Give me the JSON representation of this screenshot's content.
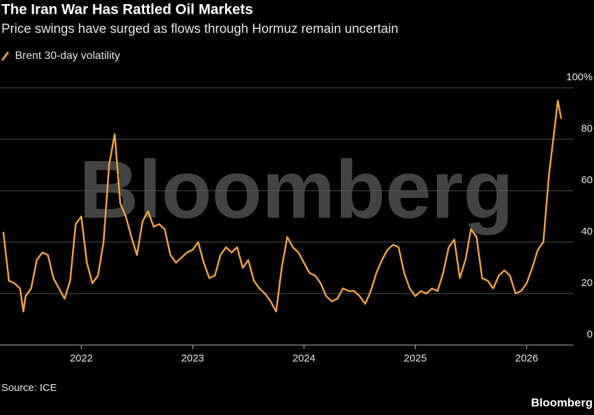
{
  "chart_data": {
    "type": "line",
    "title": "The Iran War Has Rattled Oil Markets",
    "subtitle": "Price swings have surged as flows through Hormuz remain uncertain",
    "source": "Source: ICE",
    "watermark": "Bloomberg",
    "brand": "Bloomberg",
    "grid": true,
    "x": [
      2021.3,
      2021.35,
      2021.4,
      2021.45,
      2021.48,
      2021.5,
      2021.55,
      2021.6,
      2021.65,
      2021.7,
      2021.75,
      2021.8,
      2021.85,
      2021.9,
      2021.95,
      2022.0,
      2022.05,
      2022.1,
      2022.15,
      2022.2,
      2022.25,
      2022.3,
      2022.35,
      2022.4,
      2022.45,
      2022.5,
      2022.55,
      2022.6,
      2022.65,
      2022.7,
      2022.75,
      2022.8,
      2022.85,
      2022.9,
      2022.95,
      2023.0,
      2023.05,
      2023.1,
      2023.15,
      2023.2,
      2023.25,
      2023.3,
      2023.35,
      2023.4,
      2023.45,
      2023.5,
      2023.55,
      2023.6,
      2023.65,
      2023.7,
      2023.75,
      2023.8,
      2023.85,
      2023.9,
      2023.95,
      2024.0,
      2024.05,
      2024.1,
      2024.15,
      2024.2,
      2024.25,
      2024.3,
      2024.35,
      2024.4,
      2024.45,
      2024.5,
      2024.55,
      2024.6,
      2024.65,
      2024.7,
      2024.75,
      2024.8,
      2024.85,
      2024.9,
      2024.95,
      2025.0,
      2025.05,
      2025.1,
      2025.15,
      2025.2,
      2025.25,
      2025.3,
      2025.35,
      2025.4,
      2025.45,
      2025.5,
      2025.55,
      2025.6,
      2025.65,
      2025.7,
      2025.75,
      2025.8,
      2025.85,
      2025.9,
      2025.95,
      2026.0,
      2026.05,
      2026.1,
      2026.15,
      2026.2,
      2026.25,
      2026.28,
      2026.31
    ],
    "series": [
      {
        "name": "Brent 30-day volatility",
        "color": "#f7a23b",
        "values": [
          44,
          25,
          24,
          22,
          13,
          19,
          22,
          33,
          36,
          35,
          26,
          22,
          18,
          25,
          47,
          50,
          32,
          24,
          27,
          40,
          70,
          82,
          55,
          50,
          42,
          35,
          48,
          52,
          46,
          47,
          45,
          35,
          32,
          34,
          36,
          37,
          40,
          32,
          26,
          27,
          35,
          38,
          36,
          38,
          30,
          33,
          25,
          22,
          20,
          17,
          13,
          30,
          42,
          38,
          36,
          32,
          28,
          27,
          24,
          19,
          17,
          18,
          22,
          21,
          21,
          19,
          16,
          21,
          28,
          33,
          37,
          39,
          38,
          28,
          22,
          19,
          21,
          20,
          22,
          21,
          28,
          38,
          41,
          26,
          33,
          45,
          42,
          26,
          25,
          22,
          27,
          29,
          27,
          20,
          21,
          24,
          30,
          37,
          40,
          66,
          84,
          95,
          88
        ]
      }
    ],
    "xlim": [
      2021.27,
      2026.42
    ],
    "xticks": [
      2022,
      2023,
      2024,
      2025,
      2026
    ],
    "ylim": [
      0,
      100
    ],
    "yticks": [
      0,
      20,
      40,
      60,
      80,
      {
        "value": 100,
        "label": "100%"
      }
    ]
  }
}
